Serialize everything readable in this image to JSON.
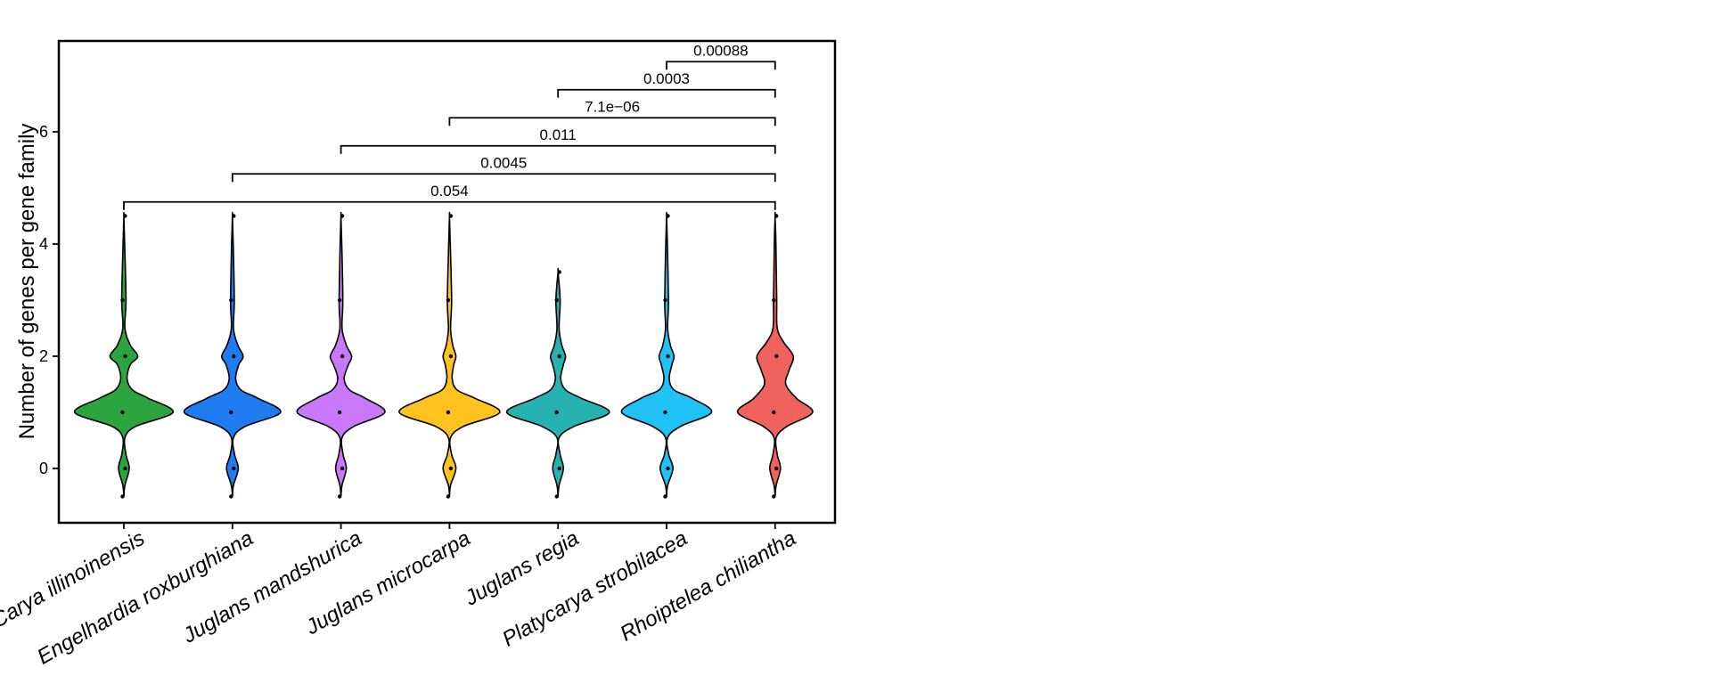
{
  "chart_data": {
    "type": "violin",
    "title": "",
    "xlabel": "",
    "ylabel": "Number of genes per gene family",
    "ylim": [
      -0.9,
      7.7
    ],
    "yticks": [
      0,
      2,
      4,
      6
    ],
    "categories": [
      "Carya illinoinensis",
      "Engelhardia roxburghiana",
      "Juglans mandshurica",
      "Juglans microcarpa",
      "Juglans regia",
      "Platycarya strobilacea",
      "Rhoiptelea chiliantha"
    ],
    "colors": [
      "#2ca440",
      "#1f7cf0",
      "#c878f8",
      "#ffc21f",
      "#26b2b0",
      "#20c1f5",
      "#f0625e"
    ],
    "series": [
      {
        "range": [
          -0.5,
          4.5
        ],
        "density": [
          [
            -0.5,
            0.0
          ],
          [
            -0.3,
            0.02
          ],
          [
            0,
            0.1
          ],
          [
            0.25,
            0.04
          ],
          [
            0.55,
            0.02
          ],
          [
            0.75,
            0.22
          ],
          [
            1,
            0.92
          ],
          [
            1.25,
            0.46
          ],
          [
            1.4,
            0.16
          ],
          [
            1.6,
            0.06
          ],
          [
            1.85,
            0.12
          ],
          [
            2,
            0.26
          ],
          [
            2.2,
            0.12
          ],
          [
            2.5,
            0.02
          ],
          [
            3,
            0.04
          ],
          [
            4,
            0.015
          ],
          [
            4.5,
            0.0
          ]
        ]
      },
      {
        "range": [
          -0.5,
          4.5
        ],
        "density": [
          [
            -0.5,
            0.0
          ],
          [
            -0.3,
            0.02
          ],
          [
            0,
            0.11
          ],
          [
            0.25,
            0.04
          ],
          [
            0.55,
            0.02
          ],
          [
            0.75,
            0.24
          ],
          [
            1,
            0.9
          ],
          [
            1.25,
            0.48
          ],
          [
            1.4,
            0.16
          ],
          [
            1.6,
            0.06
          ],
          [
            1.85,
            0.12
          ],
          [
            2,
            0.2
          ],
          [
            2.2,
            0.1
          ],
          [
            2.5,
            0.02
          ],
          [
            3,
            0.035
          ],
          [
            4,
            0.015
          ],
          [
            4.5,
            0.0
          ]
        ]
      },
      {
        "range": [
          -0.5,
          4.5
        ],
        "density": [
          [
            -0.5,
            0.0
          ],
          [
            -0.3,
            0.02
          ],
          [
            0,
            0.1
          ],
          [
            0.25,
            0.04
          ],
          [
            0.55,
            0.02
          ],
          [
            0.75,
            0.24
          ],
          [
            1,
            0.82
          ],
          [
            1.25,
            0.46
          ],
          [
            1.4,
            0.16
          ],
          [
            1.6,
            0.06
          ],
          [
            1.85,
            0.14
          ],
          [
            2,
            0.2
          ],
          [
            2.2,
            0.1
          ],
          [
            2.5,
            0.02
          ],
          [
            3,
            0.035
          ],
          [
            4,
            0.015
          ],
          [
            4.5,
            0.0
          ]
        ]
      },
      {
        "range": [
          -0.5,
          4.5
        ],
        "density": [
          [
            -0.5,
            0.0
          ],
          [
            -0.3,
            0.02
          ],
          [
            0,
            0.12
          ],
          [
            0.25,
            0.04
          ],
          [
            0.55,
            0.02
          ],
          [
            0.75,
            0.26
          ],
          [
            1,
            0.94
          ],
          [
            1.25,
            0.48
          ],
          [
            1.4,
            0.14
          ],
          [
            1.6,
            0.05
          ],
          [
            1.85,
            0.08
          ],
          [
            2,
            0.12
          ],
          [
            2.2,
            0.06
          ],
          [
            2.5,
            0.02
          ],
          [
            3,
            0.04
          ],
          [
            4,
            0.015
          ],
          [
            4.5,
            0.0
          ]
        ]
      },
      {
        "range": [
          -0.5,
          3.5
        ],
        "density": [
          [
            -0.5,
            0.0
          ],
          [
            -0.3,
            0.02
          ],
          [
            0,
            0.1
          ],
          [
            0.25,
            0.04
          ],
          [
            0.55,
            0.02
          ],
          [
            0.75,
            0.3
          ],
          [
            1,
            0.96
          ],
          [
            1.25,
            0.44
          ],
          [
            1.4,
            0.14
          ],
          [
            1.6,
            0.05
          ],
          [
            1.85,
            0.1
          ],
          [
            2,
            0.14
          ],
          [
            2.2,
            0.07
          ],
          [
            2.5,
            0.02
          ],
          [
            3,
            0.04
          ],
          [
            3.5,
            0.0
          ]
        ]
      },
      {
        "range": [
          -0.5,
          4.5
        ],
        "density": [
          [
            -0.5,
            0.0
          ],
          [
            -0.3,
            0.02
          ],
          [
            0,
            0.12
          ],
          [
            0.25,
            0.04
          ],
          [
            0.55,
            0.02
          ],
          [
            0.75,
            0.26
          ],
          [
            1,
            0.84
          ],
          [
            1.25,
            0.48
          ],
          [
            1.4,
            0.14
          ],
          [
            1.6,
            0.05
          ],
          [
            1.85,
            0.1
          ],
          [
            2,
            0.14
          ],
          [
            2.2,
            0.07
          ],
          [
            2.5,
            0.02
          ],
          [
            3,
            0.035
          ],
          [
            4,
            0.015
          ],
          [
            4.5,
            0.0
          ]
        ]
      },
      {
        "range": [
          -0.5,
          4.5
        ],
        "density": [
          [
            -0.5,
            0.0
          ],
          [
            -0.3,
            0.02
          ],
          [
            0,
            0.1
          ],
          [
            0.25,
            0.04
          ],
          [
            0.55,
            0.02
          ],
          [
            0.75,
            0.22
          ],
          [
            1,
            0.7
          ],
          [
            1.25,
            0.4
          ],
          [
            1.5,
            0.2
          ],
          [
            1.75,
            0.26
          ],
          [
            2,
            0.34
          ],
          [
            2.25,
            0.16
          ],
          [
            2.5,
            0.04
          ],
          [
            3,
            0.03
          ],
          [
            4,
            0.015
          ],
          [
            4.5,
            0.0
          ]
        ]
      }
    ],
    "comparisons": [
      {
        "from": 0,
        "to": 6,
        "y": 4.75,
        "label": "0.054"
      },
      {
        "from": 1,
        "to": 6,
        "y": 5.25,
        "label": "0.0045"
      },
      {
        "from": 2,
        "to": 6,
        "y": 5.75,
        "label": "0.011"
      },
      {
        "from": 3,
        "to": 6,
        "y": 6.25,
        "label": "7.1e−06"
      },
      {
        "from": 4,
        "to": 6,
        "y": 6.75,
        "label": "0.0003"
      },
      {
        "from": 5,
        "to": 6,
        "y": 7.25,
        "label": "0.00088"
      }
    ]
  }
}
